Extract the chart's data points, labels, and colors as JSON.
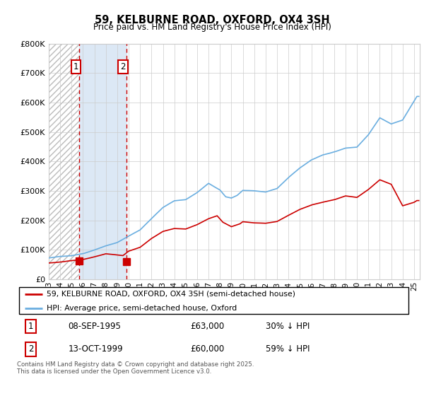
{
  "title": "59, KELBURNE ROAD, OXFORD, OX4 3SH",
  "subtitle": "Price paid vs. HM Land Registry's House Price Index (HPI)",
  "footnote": "Contains HM Land Registry data © Crown copyright and database right 2025.\nThis data is licensed under the Open Government Licence v3.0.",
  "legend_line1": "59, KELBURNE ROAD, OXFORD, OX4 3SH (semi-detached house)",
  "legend_line2": "HPI: Average price, semi-detached house, Oxford",
  "purchase1_date": "08-SEP-1995",
  "purchase1_price": 63000,
  "purchase1_label": "30% ↓ HPI",
  "purchase2_date": "13-OCT-1999",
  "purchase2_price": 60000,
  "purchase2_label": "59% ↓ HPI",
  "purchase1_year": 1995.69,
  "purchase2_year": 1999.79,
  "hpi_color": "#6aaee0",
  "price_color": "#cc0000",
  "ylim": [
    0,
    800000
  ],
  "yticks": [
    0,
    100000,
    200000,
    300000,
    400000,
    500000,
    600000,
    700000,
    800000
  ],
  "xlim_start": 1993.0,
  "xlim_end": 2025.5,
  "xtick_years": [
    1993,
    1994,
    1995,
    1996,
    1997,
    1998,
    1999,
    2000,
    2001,
    2002,
    2003,
    2004,
    2005,
    2006,
    2007,
    2008,
    2009,
    2010,
    2011,
    2012,
    2013,
    2014,
    2015,
    2016,
    2017,
    2018,
    2019,
    2020,
    2021,
    2022,
    2023,
    2024,
    2025
  ]
}
